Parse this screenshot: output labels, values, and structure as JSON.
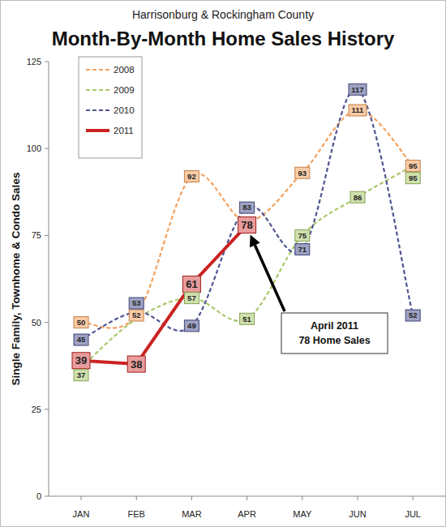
{
  "chart_data": {
    "type": "line",
    "subtitle": "Harrisonburg & Rockingham County",
    "title": "Month-By-Month Home Sales History",
    "y_label": "Single Family, Townhome & Condo Sales",
    "categories": [
      "JAN",
      "FEB",
      "MAR",
      "APR",
      "MAY",
      "JUN",
      "JUL"
    ],
    "series": [
      {
        "name": "2008",
        "color": "#f4a15d",
        "line_style": "dashed",
        "marker": "square",
        "values": [
          50,
          52,
          92,
          79,
          93,
          111,
          95
        ],
        "value_labels": [
          "50",
          "52",
          "92",
          null,
          "93",
          "111",
          "95"
        ]
      },
      {
        "name": "2009",
        "color": "#a9c96b",
        "line_style": "dashed",
        "marker": "square",
        "values": [
          37,
          51,
          57,
          51,
          75,
          86,
          95
        ],
        "value_labels": [
          "37",
          null,
          "57",
          "51",
          "75",
          "86",
          "95"
        ]
      },
      {
        "name": "2010",
        "color": "#4f5592",
        "line_style": "dashed",
        "marker": "square",
        "values": [
          45,
          53,
          49,
          83,
          71,
          117,
          52
        ]
      },
      {
        "name": "2011",
        "color": "#cc2222",
        "line_style": "solid",
        "marker": "square",
        "values": [
          39,
          38,
          61,
          78,
          null,
          null,
          null
        ]
      }
    ],
    "ylim": [
      0,
      125
    ],
    "yticks": [
      0,
      25,
      50,
      75,
      100,
      125
    ],
    "grid": false,
    "legend": "upper left",
    "data_labels": true,
    "annotation": [
      "April 2011",
      "78 Home Sales"
    ]
  }
}
